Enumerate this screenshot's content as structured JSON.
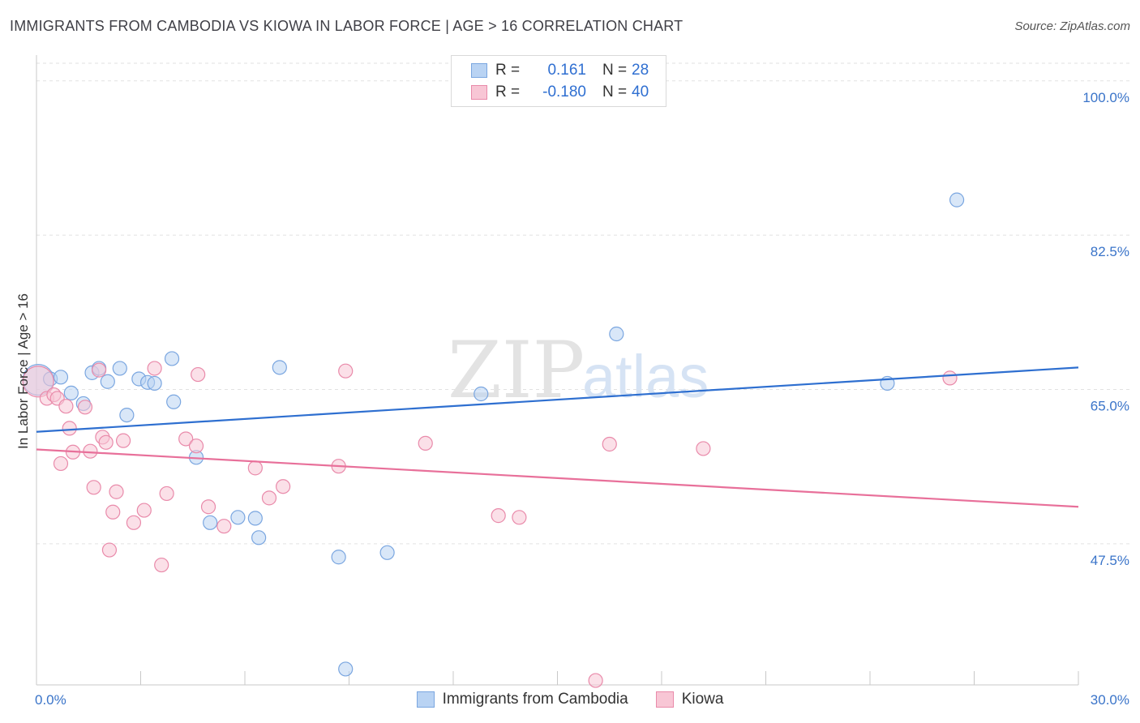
{
  "header": {
    "title": "IMMIGRANTS FROM CAMBODIA VS KIOWA IN LABOR FORCE | AGE > 16 CORRELATION CHART",
    "source": "Source: ZipAtlas.com"
  },
  "watermark": {
    "zip": "ZIP",
    "atlas": "atlas"
  },
  "legend": {
    "rows": [
      {
        "r_label": "R =",
        "r_value": "0.161",
        "n_label": "N =",
        "n_value": "28",
        "color": "#b9d3f3",
        "border": "#7aa6e0"
      },
      {
        "r_label": "R =",
        "r_value": "-0.180",
        "n_label": "N =",
        "n_value": "40",
        "color": "#f8c6d5",
        "border": "#e98aaa"
      }
    ]
  },
  "bottom_legend": [
    {
      "label": "Immigrants from Cambodia",
      "color": "#b9d3f3",
      "border": "#7aa6e0"
    },
    {
      "label": "Kiowa",
      "color": "#f8c6d5",
      "border": "#e98aaa"
    }
  ],
  "chart_data": {
    "type": "scatter",
    "title": "IMMIGRANTS FROM CAMBODIA VS KIOWA IN LABOR FORCE | AGE > 16 CORRELATION CHART",
    "xlabel": "",
    "ylabel": "In Labor Force | Age > 16",
    "xlim": [
      0,
      30
    ],
    "ylim": [
      31.5,
      102
    ],
    "x_tick_labels": [
      {
        "value": 0,
        "label": "0.0%"
      },
      {
        "value": 30,
        "label": "30.0%"
      }
    ],
    "x_minor_ticks": [
      3,
      6,
      9,
      12,
      15,
      18,
      21,
      24,
      27,
      30
    ],
    "y_ticks": [
      {
        "value": 100,
        "label": "100.0%"
      },
      {
        "value": 82.5,
        "label": "82.5%"
      },
      {
        "value": 65,
        "label": "65.0%"
      },
      {
        "value": 47.5,
        "label": "47.5%"
      }
    ],
    "grid": true,
    "series": [
      {
        "name": "Immigrants from Cambodia",
        "color": "#b9d3f3",
        "stroke": "#7aa6e0",
        "line_color": "#2e6fd0",
        "trend": {
          "x": [
            0,
            30
          ],
          "y": [
            60.2,
            67.5
          ]
        },
        "points": [
          {
            "x": 0.05,
            "y": 66.1,
            "big": true
          },
          {
            "x": 0.4,
            "y": 66.2
          },
          {
            "x": 0.7,
            "y": 66.4
          },
          {
            "x": 1.0,
            "y": 64.6
          },
          {
            "x": 1.35,
            "y": 63.4
          },
          {
            "x": 1.6,
            "y": 66.9
          },
          {
            "x": 1.8,
            "y": 67.4
          },
          {
            "x": 2.05,
            "y": 65.9
          },
          {
            "x": 2.4,
            "y": 67.4
          },
          {
            "x": 2.6,
            "y": 62.1
          },
          {
            "x": 2.95,
            "y": 66.2
          },
          {
            "x": 3.2,
            "y": 65.8
          },
          {
            "x": 3.4,
            "y": 65.7
          },
          {
            "x": 3.9,
            "y": 68.5
          },
          {
            "x": 3.95,
            "y": 63.6
          },
          {
            "x": 4.6,
            "y": 57.3
          },
          {
            "x": 5.0,
            "y": 49.9
          },
          {
            "x": 5.8,
            "y": 50.5
          },
          {
            "x": 6.3,
            "y": 50.4
          },
          {
            "x": 6.4,
            "y": 48.2
          },
          {
            "x": 7.0,
            "y": 67.5
          },
          {
            "x": 8.7,
            "y": 46.0
          },
          {
            "x": 8.9,
            "y": 33.3
          },
          {
            "x": 10.1,
            "y": 46.5
          },
          {
            "x": 12.8,
            "y": 64.5
          },
          {
            "x": 16.7,
            "y": 71.3
          },
          {
            "x": 24.5,
            "y": 65.7
          },
          {
            "x": 26.5,
            "y": 86.5
          }
        ]
      },
      {
        "name": "Kiowa",
        "color": "#f8c6d5",
        "stroke": "#e98aaa",
        "line_color": "#e8709a",
        "trend": {
          "x": [
            0,
            30
          ],
          "y": [
            58.2,
            51.7
          ]
        },
        "points": [
          {
            "x": 0.05,
            "y": 65.9,
            "big": true
          },
          {
            "x": 0.3,
            "y": 64.0
          },
          {
            "x": 0.5,
            "y": 64.4
          },
          {
            "x": 0.6,
            "y": 64.0
          },
          {
            "x": 0.7,
            "y": 56.6
          },
          {
            "x": 0.85,
            "y": 63.1
          },
          {
            "x": 0.95,
            "y": 60.6
          },
          {
            "x": 1.05,
            "y": 57.9
          },
          {
            "x": 1.4,
            "y": 63.0
          },
          {
            "x": 1.55,
            "y": 58.0
          },
          {
            "x": 1.65,
            "y": 53.9
          },
          {
            "x": 1.8,
            "y": 67.2
          },
          {
            "x": 1.9,
            "y": 59.6
          },
          {
            "x": 2.0,
            "y": 59.0
          },
          {
            "x": 2.1,
            "y": 46.8
          },
          {
            "x": 2.2,
            "y": 51.1
          },
          {
            "x": 2.3,
            "y": 53.4
          },
          {
            "x": 2.5,
            "y": 59.2
          },
          {
            "x": 2.8,
            "y": 49.9
          },
          {
            "x": 3.1,
            "y": 51.3
          },
          {
            "x": 3.4,
            "y": 67.4
          },
          {
            "x": 3.6,
            "y": 45.1
          },
          {
            "x": 3.75,
            "y": 53.2
          },
          {
            "x": 4.3,
            "y": 59.4
          },
          {
            "x": 4.6,
            "y": 58.6
          },
          {
            "x": 4.65,
            "y": 66.7
          },
          {
            "x": 4.95,
            "y": 51.7
          },
          {
            "x": 5.4,
            "y": 49.5
          },
          {
            "x": 6.3,
            "y": 56.1
          },
          {
            "x": 6.7,
            "y": 52.7
          },
          {
            "x": 7.1,
            "y": 54.0
          },
          {
            "x": 8.7,
            "y": 56.3
          },
          {
            "x": 8.9,
            "y": 67.1
          },
          {
            "x": 11.2,
            "y": 58.9
          },
          {
            "x": 13.3,
            "y": 50.7
          },
          {
            "x": 13.9,
            "y": 50.5
          },
          {
            "x": 16.1,
            "y": 32.0
          },
          {
            "x": 16.5,
            "y": 58.8
          },
          {
            "x": 19.2,
            "y": 58.3
          },
          {
            "x": 26.3,
            "y": 66.3
          }
        ]
      }
    ]
  }
}
